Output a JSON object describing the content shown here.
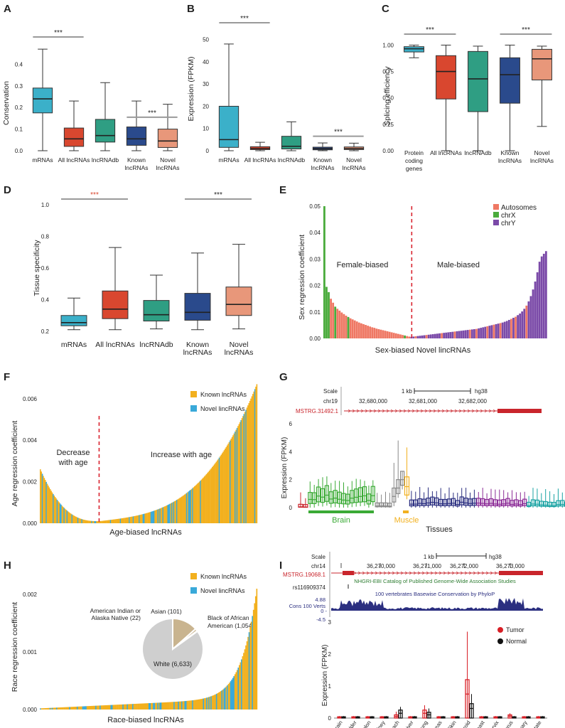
{
  "colors": {
    "mrna": "#3bb0c9",
    "all_lnc": "#d9472f",
    "lncrnadb": "#2f9e83",
    "known": "#2a4a8c",
    "novel": "#e8977a",
    "sig_gray": "#9a9a9a",
    "sig_red": "#d9472f",
    "autosomes": "#ef7864",
    "chrX": "#4aab3c",
    "chrY": "#7b4aa8",
    "known_lnc": "#f2b01e",
    "novel_lnc": "#39a9d9",
    "tumor": "#d81f26",
    "normal": "#111111",
    "track_red": "#c9252c",
    "track_blue": "#2b2f80",
    "brain": "#3aaa35",
    "muscle": "#f2b01e",
    "divider": "#d9232e"
  },
  "panels": {
    "A": {
      "letter": "A",
      "ylabel": "Conservation",
      "yticks": [
        "0.0",
        "0.1",
        "0.2",
        "0.3",
        "0.4"
      ],
      "categories": [
        "mRNAs",
        "All lncRNAs",
        "lncRNAdb",
        "Known\nlncRNAs",
        "Novel\nlncRNAs"
      ],
      "sig": [
        {
          "text": "***",
          "from": 0,
          "to": 1,
          "color": "gray"
        },
        {
          "text": "***",
          "from": 3,
          "to": 4,
          "color": "gray"
        }
      ]
    },
    "B": {
      "letter": "B",
      "ylabel": "Expression  (FPKM)",
      "yticks": [
        "0",
        "10",
        "20",
        "30",
        "40",
        "50"
      ],
      "categories": [
        "mRNAs",
        "All lncRNAs",
        "lncRNAdb",
        "Known\nlncRNAs",
        "Novel\nlncRNAs"
      ],
      "sig": [
        {
          "text": "***",
          "from": 0,
          "to": 1,
          "color": "gray"
        },
        {
          "text": "***",
          "from": 3,
          "to": 4,
          "color": "gray"
        }
      ]
    },
    "C": {
      "letter": "C",
      "ylabel": "Splicing efficiency",
      "yticks": [
        "0.00",
        "0.25",
        "0.50",
        "0.75",
        "1.00"
      ],
      "categories": [
        "Protein\ncoding\ngenes",
        "All lncRNAs",
        "lncRNAdb",
        "Known\nlncRNAs",
        "Novel\nlncRNAs"
      ],
      "sig": [
        {
          "text": "***",
          "from": 0,
          "to": 1,
          "color": "gray"
        },
        {
          "text": "***",
          "from": 3,
          "to": 4,
          "color": "gray"
        }
      ]
    },
    "D": {
      "letter": "D",
      "ylabel": "Tissue specificity",
      "yticks": [
        "0.2",
        "0.4",
        "0.6",
        "0.8",
        "1.0"
      ],
      "categories": [
        "mRNAs",
        "All lncRNAs",
        "lncRNAdb",
        "Known\nlncRNAs",
        "Novel\nlncRNAs"
      ],
      "sig": [
        {
          "text": "***",
          "from": 0,
          "to": 1,
          "color": "red"
        },
        {
          "text": "***",
          "from": 3,
          "to": 4,
          "color": "gray"
        }
      ]
    },
    "E": {
      "letter": "E",
      "ylabel": "Sex regression coefficient",
      "xlabel": "Sex-biased Novel lincRNAs",
      "yticks": [
        "0.00",
        "0.01",
        "0.02",
        "0.03",
        "0.04",
        "0.05"
      ],
      "left_region": "Female-biased",
      "right_region": "Male-biased",
      "legend": [
        "Autosomes",
        "chrX",
        "chrY"
      ]
    },
    "F": {
      "letter": "F",
      "ylabel": "Age regression coefficient",
      "xlabel": "Age-biased lncRNAs",
      "yticks": [
        "0.000",
        "0.002",
        "0.004",
        "0.006"
      ],
      "left_region_1": "Decrease",
      "left_region_2": "with age",
      "right_region": "Increase with age",
      "legend": [
        "Known lncRNAs",
        "Novel lincRNAs"
      ]
    },
    "G": {
      "letter": "G",
      "scale_label": "Scale",
      "scale_bar": "1 kb",
      "assembly": "hg38",
      "chrom": "chr19",
      "coords": [
        "32,680,000",
        "32,681,000",
        "32,682,000"
      ],
      "gene": "MSTRG.31492.1",
      "ylabel": "Expression (FPKM)",
      "yticks": [
        "0",
        "2",
        "4",
        "6"
      ],
      "xlabel": "Tissues",
      "group1": "Brain",
      "group2": "Muscle"
    },
    "H": {
      "letter": "H",
      "ylabel": "Race regression coefficient",
      "xlabel": "Race-biased lncRNAs",
      "yticks": [
        "0.000",
        "0.001",
        "0.002"
      ],
      "legend": [
        "Known lncRNAs",
        "Novel lincRNAs"
      ],
      "pie_labels": {
        "american_1": "American Indian or",
        "american_2": "Alaska Native (22)",
        "asian": "Asian (101)",
        "black_1": "Black of African",
        "black_2": "American (1,054)",
        "white": "White (6,633)"
      }
    },
    "I": {
      "letter": "I",
      "scale_label": "Scale",
      "scale_bar": "1 kb",
      "assembly": "hg38",
      "chrom": "chr14",
      "coords": [
        "36,270,000",
        "36,271,000",
        "36,272,000",
        "36,273,000"
      ],
      "gene": "MSTRG.19068.1",
      "gwas_track": "NHGRI-EBI Catalog of Published Genome-Wide Association Studies",
      "snp": "rs116909374",
      "cons_track": "100 vertebrates Basewise Conservation by PhyloP",
      "cons_label": "Cons 100 Verts",
      "cons_max": "4.88",
      "cons_zero": "0 -",
      "cons_min": "-4.5",
      "ylabel": "Expression (FPKM)",
      "yticks": [
        "0",
        "1",
        "2",
        "3"
      ],
      "legend": [
        "Tumor",
        "Normal"
      ],
      "tissues": [
        "Brain",
        "Bladder",
        "Colon",
        "Kidney",
        "Stomach",
        "Liver",
        "Lung",
        "Pancreas",
        "Skin",
        "Thyroid",
        "Breast",
        "Cervix",
        "Uterus",
        "Ovary",
        "Prostate"
      ]
    }
  },
  "chart_data": [
    {
      "id": "A",
      "type": "box",
      "ylabel": "Conservation",
      "ylim": [
        0,
        0.5
      ],
      "categories": [
        "mRNAs",
        "All lncRNAs",
        "lncRNAdb",
        "Known lncRNAs",
        "Novel lncRNAs"
      ],
      "boxes": [
        {
          "min": 0.0,
          "q1": 0.175,
          "median": 0.24,
          "q3": 0.29,
          "max": 0.47
        },
        {
          "min": 0.0,
          "q1": 0.02,
          "median": 0.055,
          "q3": 0.105,
          "max": 0.23
        },
        {
          "min": 0.0,
          "q1": 0.04,
          "median": 0.07,
          "q3": 0.145,
          "max": 0.315
        },
        {
          "min": 0.0,
          "q1": 0.025,
          "median": 0.055,
          "q3": 0.11,
          "max": 0.23
        },
        {
          "min": 0.0,
          "q1": 0.015,
          "median": 0.045,
          "q3": 0.1,
          "max": 0.215
        }
      ]
    },
    {
      "id": "B",
      "type": "box",
      "ylabel": "Expression (FPKM)",
      "ylim": [
        0,
        55
      ],
      "categories": [
        "mRNAs",
        "All lncRNAs",
        "lncRNAdb",
        "Known lncRNAs",
        "Novel lncRNAs"
      ],
      "boxes": [
        {
          "min": 0.0,
          "q1": 1.5,
          "median": 5.0,
          "q3": 20.0,
          "max": 48.0
        },
        {
          "min": 0.0,
          "q1": 0.5,
          "median": 1.0,
          "q3": 1.8,
          "max": 3.8
        },
        {
          "min": 0.0,
          "q1": 0.8,
          "median": 2.0,
          "q3": 6.5,
          "max": 13.0
        },
        {
          "min": 0.0,
          "q1": 0.4,
          "median": 0.9,
          "q3": 1.6,
          "max": 3.5
        },
        {
          "min": 0.0,
          "q1": 0.5,
          "median": 1.0,
          "q3": 1.7,
          "max": 3.4
        }
      ]
    },
    {
      "id": "C",
      "type": "box",
      "ylabel": "Splicing efficiency",
      "ylim": [
        0,
        1.05
      ],
      "categories": [
        "Protein coding genes",
        "All lncRNAs",
        "lncRNAdb",
        "Known lncRNAs",
        "Novel lncRNAs"
      ],
      "boxes": [
        {
          "min": 0.88,
          "q1": 0.935,
          "median": 0.965,
          "q3": 0.985,
          "max": 1.0
        },
        {
          "min": 0.0,
          "q1": 0.49,
          "median": 0.75,
          "q3": 0.9,
          "max": 1.0
        },
        {
          "min": 0.0,
          "q1": 0.37,
          "median": 0.68,
          "q3": 0.94,
          "max": 0.99
        },
        {
          "min": 0.0,
          "q1": 0.45,
          "median": 0.72,
          "q3": 0.88,
          "max": 1.0
        },
        {
          "min": 0.23,
          "q1": 0.67,
          "median": 0.87,
          "q3": 0.96,
          "max": 0.99
        }
      ]
    },
    {
      "id": "D",
      "type": "box",
      "ylabel": "Tissue specificity",
      "ylim": [
        0.2,
        1.0
      ],
      "categories": [
        "mRNAs",
        "All lncRNAs",
        "lncRNAdb",
        "Known lncRNAs",
        "Novel lncRNAs"
      ],
      "boxes": [
        {
          "min": 0.21,
          "q1": 0.235,
          "median": 0.255,
          "q3": 0.3,
          "max": 0.41
        },
        {
          "min": 0.21,
          "q1": 0.28,
          "median": 0.34,
          "q3": 0.455,
          "max": 0.73
        },
        {
          "min": 0.215,
          "q1": 0.265,
          "median": 0.305,
          "q3": 0.395,
          "max": 0.555
        },
        {
          "min": 0.21,
          "q1": 0.27,
          "median": 0.32,
          "q3": 0.44,
          "max": 0.695
        },
        {
          "min": 0.215,
          "q1": 0.3,
          "median": 0.37,
          "q3": 0.48,
          "max": 0.75
        }
      ]
    },
    {
      "id": "E",
      "type": "bar",
      "xlabel": "Sex-biased Novel lincRNAs",
      "ylabel": "Sex regression coefficient",
      "ylim": [
        0,
        0.05
      ],
      "note_series": [
        "Autosomes",
        "chrX",
        "chrY"
      ],
      "female_values_desc": [
        0.05,
        0.0195,
        0.0175,
        0.015,
        0.0135,
        0.012,
        0.0112,
        0.0105,
        0.0098,
        0.0092,
        0.0086,
        0.0081,
        0.0076,
        0.0072,
        0.0068,
        0.0064,
        0.006,
        0.0057,
        0.0054,
        0.0051,
        0.0048,
        0.0045,
        0.0042,
        0.004,
        0.0037,
        0.0035,
        0.0033,
        0.0031,
        0.0029,
        0.0027,
        0.0025,
        0.0023,
        0.0021,
        0.0019,
        0.0017,
        0.0015,
        0.0013,
        0.0011,
        0.0009,
        0.0007
      ],
      "female_chrom": [
        "X",
        "X",
        "X",
        "A",
        "A",
        "X",
        "A",
        "A",
        "A",
        "A",
        "A",
        "X",
        "A",
        "A",
        "A",
        "A",
        "A",
        "A",
        "A",
        "A",
        "A",
        "A",
        "A",
        "A",
        "A",
        "A",
        "A",
        "A",
        "A",
        "A",
        "A",
        "A",
        "A",
        "A",
        "A",
        "A",
        "A",
        "X",
        "A",
        "A"
      ],
      "male_values_asc": [
        0.0006,
        0.0007,
        0.0008,
        0.0009,
        0.001,
        0.0011,
        0.0012,
        0.0013,
        0.0014,
        0.0015,
        0.0016,
        0.0017,
        0.0018,
        0.0019,
        0.002,
        0.0021,
        0.0022,
        0.0023,
        0.0024,
        0.0025,
        0.0026,
        0.0027,
        0.0028,
        0.0029,
        0.003,
        0.0031,
        0.0032,
        0.0033,
        0.0034,
        0.0035,
        0.0036,
        0.0038,
        0.004,
        0.0042,
        0.0044,
        0.0046,
        0.0048,
        0.005,
        0.0052,
        0.0054,
        0.0056,
        0.0058,
        0.006,
        0.0063,
        0.0066,
        0.007,
        0.0074,
        0.0078,
        0.0082,
        0.0088,
        0.0094,
        0.0102,
        0.0112,
        0.0124,
        0.014,
        0.016,
        0.0185,
        0.0215,
        0.025,
        0.029,
        0.031,
        0.032,
        0.033
      ],
      "male_chrom": [
        "Y",
        "Y",
        "A",
        "Y",
        "Y",
        "Y",
        "Y",
        "A",
        "Y",
        "Y",
        "Y",
        "Y",
        "Y",
        "Y",
        "A",
        "Y",
        "Y",
        "Y",
        "Y",
        "Y",
        "A",
        "Y",
        "Y",
        "Y",
        "Y",
        "Y",
        "Y",
        "A",
        "Y",
        "Y",
        "A",
        "Y",
        "Y",
        "Y",
        "Y",
        "A",
        "Y",
        "Y",
        "A",
        "Y",
        "Y",
        "A",
        "Y",
        "Y",
        "Y",
        "Y",
        "A",
        "Y",
        "A",
        "Y",
        "Y",
        "Y",
        "Y",
        "A",
        "Y",
        "Y",
        "Y",
        "Y",
        "Y",
        "Y",
        "Y",
        "Y",
        "Y"
      ]
    },
    {
      "id": "F",
      "type": "bar",
      "xlabel": "Age-biased lncRNAs",
      "ylabel": "Age regression coefficient",
      "ylim": [
        0,
        0.0062
      ],
      "series": [
        {
          "name": "Known lncRNAs"
        },
        {
          "name": "Novel lincRNAs"
        }
      ],
      "left_start": 0.0026,
      "left_end": 0.0001,
      "right_start": 0.0001,
      "right_end": 0.0058
    },
    {
      "id": "G",
      "type": "box",
      "xlabel": "Tissues",
      "ylabel": "Expression (FPKM)",
      "ylim": [
        0,
        6
      ],
      "groups": [
        {
          "name": "Brain",
          "color": "#3aaa35"
        },
        {
          "name": "Muscle",
          "color": "#f2b01e"
        }
      ],
      "highlight_max": {
        "gray": 4.8,
        "muscle": 4.3
      }
    },
    {
      "id": "H",
      "type": "bar",
      "xlabel": "Race-biased lncRNAs",
      "ylabel": "Race regression coefficient",
      "ylim": [
        0,
        0.0022
      ],
      "series": [
        {
          "name": "Known lncRNAs"
        },
        {
          "name": "Novel lincRNAs"
        }
      ],
      "max_value": 0.0019,
      "pie": {
        "type": "pie",
        "labels": [
          "White",
          "Black of African American",
          "Asian",
          "American Indian or Alaska Native"
        ],
        "values": [
          6633,
          1054,
          101,
          22
        ]
      }
    },
    {
      "id": "I",
      "type": "box",
      "ylabel": "Expression (FPKM)",
      "ylim": [
        0,
        3
      ],
      "categories": [
        "Brain",
        "Bladder",
        "Colon",
        "Kidney",
        "Stomach",
        "Liver",
        "Lung",
        "Pancreas",
        "Skin",
        "Thyroid",
        "Breast",
        "Cervix",
        "Uterus",
        "Ovary",
        "Prostate"
      ],
      "series": [
        {
          "name": "Tumor",
          "median": [
            0.02,
            0.02,
            0.02,
            0.02,
            0.05,
            0.02,
            0.15,
            0.02,
            0.02,
            0.75,
            0.02,
            0.02,
            0.06,
            0.02,
            0.02
          ],
          "q3": [
            0.04,
            0.04,
            0.04,
            0.04,
            0.1,
            0.04,
            0.25,
            0.04,
            0.04,
            1.2,
            0.04,
            0.04,
            0.1,
            0.04,
            0.04
          ],
          "max": [
            0.06,
            0.06,
            0.06,
            0.06,
            0.2,
            0.06,
            0.4,
            0.06,
            0.06,
            2.7,
            0.06,
            0.06,
            0.15,
            0.06,
            0.06
          ]
        },
        {
          "name": "Normal",
          "median": [
            0.02,
            0.02,
            0.02,
            0.02,
            0.15,
            0.02,
            0.1,
            0.02,
            0.02,
            0.3,
            0.02,
            0.02,
            0.02,
            0.02,
            0.02
          ],
          "q3": [
            0.04,
            0.04,
            0.04,
            0.04,
            0.25,
            0.04,
            0.18,
            0.04,
            0.04,
            0.45,
            0.04,
            0.04,
            0.04,
            0.04,
            0.04
          ],
          "max": [
            0.06,
            0.06,
            0.06,
            0.06,
            0.35,
            0.06,
            0.3,
            0.06,
            0.06,
            0.75,
            0.06,
            0.06,
            0.06,
            0.06,
            0.06
          ]
        }
      ]
    }
  ]
}
